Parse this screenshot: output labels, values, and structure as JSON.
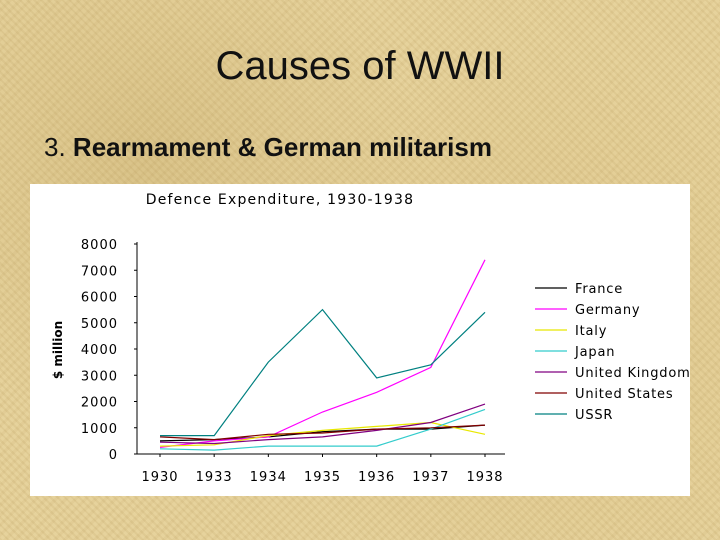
{
  "slide": {
    "title": "Causes of WWII",
    "subtitle_number": "3.",
    "subtitle_text": "Rearmament & German militarism"
  },
  "chart_data": {
    "type": "line",
    "title": "Defence Expenditure, 1930-1938",
    "xlabel": "",
    "ylabel": "$ million",
    "categories": [
      "1930",
      "1933",
      "1934",
      "1935",
      "1936",
      "1937",
      "1938"
    ],
    "ylim": [
      0,
      8000
    ],
    "yticks": [
      0,
      1000,
      2000,
      3000,
      4000,
      5000,
      6000,
      7000,
      8000
    ],
    "grid": false,
    "legend_position": "right",
    "series": [
      {
        "name": "France",
        "color": "#000000",
        "values": [
          500,
          550,
          650,
          850,
          950,
          950,
          1100
        ]
      },
      {
        "name": "Germany",
        "color": "#ff00ff",
        "values": [
          250,
          500,
          650,
          1600,
          2350,
          3300,
          7400
        ]
      },
      {
        "name": "Italy",
        "color": "#e8e800",
        "values": [
          300,
          350,
          700,
          900,
          1050,
          1200,
          750
        ]
      },
      {
        "name": "Japan",
        "color": "#33cccc",
        "values": [
          200,
          150,
          300,
          300,
          300,
          950,
          1700
        ]
      },
      {
        "name": "United Kingdom",
        "color": "#800080",
        "values": [
          450,
          400,
          550,
          650,
          900,
          1200,
          1900
        ]
      },
      {
        "name": "United States",
        "color": "#800000",
        "values": [
          650,
          550,
          750,
          800,
          950,
          1000,
          1100
        ]
      },
      {
        "name": "USSR",
        "color": "#008080",
        "values": [
          700,
          700,
          3500,
          5500,
          2900,
          3400,
          5400
        ]
      }
    ]
  }
}
